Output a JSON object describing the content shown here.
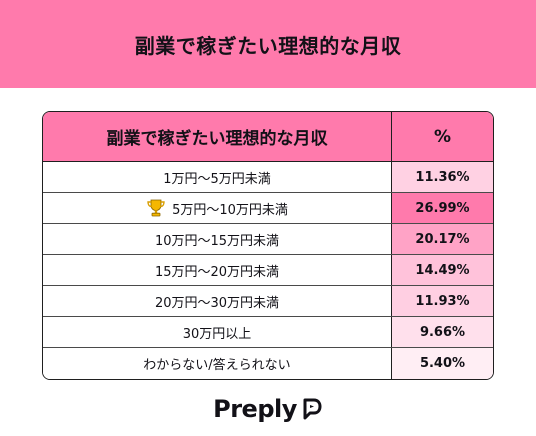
{
  "banner": {
    "title": "副業で稼ぎたい理想的な月収"
  },
  "table": {
    "header_label": "副業で稼ぎたい理想的な月収",
    "header_pct": "%",
    "rows": [
      {
        "label": "1万円〜5万円未満",
        "pct": "11.36%",
        "color": "#ffd1e3",
        "trophy": false
      },
      {
        "label": "5万円〜10万円未満",
        "pct": "26.99%",
        "color": "#ff7aac",
        "trophy": true
      },
      {
        "label": "10万円〜15万円未満",
        "pct": "20.17%",
        "color": "#ffa3c6",
        "trophy": false
      },
      {
        "label": "15万円〜20万円未満",
        "pct": "14.49%",
        "color": "#ffc2da",
        "trophy": false
      },
      {
        "label": "20万円〜30万円未満",
        "pct": "11.93%",
        "color": "#ffcfe2",
        "trophy": false
      },
      {
        "label": "30万円以上",
        "pct": "9.66%",
        "color": "#ffe0ec",
        "trophy": false
      },
      {
        "label": "わからない/答えられない",
        "pct": "5.40%",
        "color": "#ffeef4",
        "trophy": false
      }
    ]
  },
  "logo": {
    "text": "Preply",
    "icon": "preply-logo-icon"
  }
}
